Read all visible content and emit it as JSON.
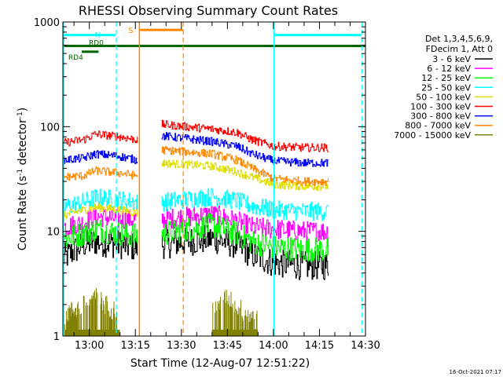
{
  "chart_data": {
    "type": "line",
    "title": "RHESSI Observing Summary Count Rates",
    "xlabel": "Start Time (12-Aug-07 12:51:22)",
    "ylabel": "Count Rate (s⁻¹ detector⁻¹)",
    "ylabel_parts": {
      "base": "Count Rate (s",
      "exp1": "-1",
      "mid": " detector",
      "exp2": "-1",
      "end": ")"
    },
    "yscale": "log",
    "ylim": [
      1,
      1000
    ],
    "yticks": [
      1,
      10,
      100,
      1000
    ],
    "ytick_labels": [
      "1",
      "10",
      "100",
      "1000"
    ],
    "xlim_minutes": [
      51.37,
      150.0
    ],
    "xticks_minutes": [
      60,
      75,
      90,
      105,
      120,
      135,
      150
    ],
    "xtick_labels": [
      "13:00",
      "13:15",
      "13:30",
      "13:45",
      "14:00",
      "14:15",
      "14:30"
    ],
    "legend_header": [
      "Det 1,3,4,5,6,9,",
      "FDecim 1, Att 0"
    ],
    "legend_position": "right",
    "timestamp": "16-Oct-2021 07:17",
    "data_gaps_minutes": [
      [
        75.6,
        83.5
      ]
    ],
    "series": [
      {
        "name": "3 - 6 keV",
        "color": "#000000",
        "points": [
          [
            51.4,
            5.5
          ],
          [
            58,
            7.5
          ],
          [
            62,
            8
          ],
          [
            70,
            7.5
          ],
          [
            75.5,
            7
          ],
          [
            83.5,
            7.5
          ],
          [
            100,
            8.5
          ],
          [
            108,
            7.5
          ],
          [
            113,
            6
          ],
          [
            120,
            5
          ],
          [
            130,
            4.7
          ],
          [
            138,
            4.7
          ]
        ]
      },
      {
        "name": "6 - 12 keV",
        "color": "#ff00ff",
        "points": [
          [
            51.4,
            11
          ],
          [
            58,
            12
          ],
          [
            62,
            14
          ],
          [
            70,
            13
          ],
          [
            75.5,
            13
          ],
          [
            83.5,
            13
          ],
          [
            100,
            14.5
          ],
          [
            108,
            12.5
          ],
          [
            113,
            11
          ],
          [
            120,
            10.5
          ],
          [
            130,
            10
          ],
          [
            138,
            10
          ]
        ]
      },
      {
        "name": "12 - 25 keV",
        "color": "#00ff00",
        "points": [
          [
            51.4,
            8.5
          ],
          [
            58,
            9.5
          ],
          [
            62,
            10.5
          ],
          [
            70,
            9.5
          ],
          [
            75.5,
            9
          ],
          [
            83.5,
            9.5
          ],
          [
            100,
            11.5
          ],
          [
            108,
            9.5
          ],
          [
            113,
            8
          ],
          [
            120,
            7
          ],
          [
            130,
            6.7
          ],
          [
            138,
            6.7
          ]
        ]
      },
      {
        "name": "25 - 50 keV",
        "color": "#00ffff",
        "points": [
          [
            51.4,
            17
          ],
          [
            58,
            19
          ],
          [
            62,
            21
          ],
          [
            70,
            20
          ],
          [
            75.5,
            19
          ],
          [
            83.5,
            19
          ],
          [
            100,
            21.5
          ],
          [
            108,
            19.5
          ],
          [
            113,
            17.5
          ],
          [
            120,
            16
          ],
          [
            130,
            15.5
          ],
          [
            138,
            15.5
          ]
        ]
      },
      {
        "name": "50 - 100 keV",
        "color": "#dddd00",
        "points": [
          [
            51.4,
            14
          ],
          [
            56,
            15.5
          ],
          [
            62,
            17
          ],
          [
            70,
            16
          ],
          [
            75.5,
            15
          ],
          [
            83.5,
            45
          ],
          [
            100,
            42
          ],
          [
            108,
            37
          ],
          [
            113,
            33
          ],
          [
            120,
            28
          ],
          [
            130,
            27
          ],
          [
            138,
            27
          ]
        ]
      },
      {
        "name": "100 - 300 keV",
        "color": "#ff0000",
        "points": [
          [
            51.4,
            70
          ],
          [
            58,
            75
          ],
          [
            62,
            85
          ],
          [
            70,
            80
          ],
          [
            75.5,
            75
          ],
          [
            83.5,
            105
          ],
          [
            100,
            95
          ],
          [
            108,
            88
          ],
          [
            113,
            75
          ],
          [
            120,
            65
          ],
          [
            130,
            63
          ],
          [
            138,
            63
          ]
        ]
      },
      {
        "name": "300 - 800 keV",
        "color": "#0000ff",
        "points": [
          [
            51.4,
            48
          ],
          [
            58,
            50
          ],
          [
            62,
            55
          ],
          [
            70,
            52
          ],
          [
            75.5,
            48
          ],
          [
            83.5,
            82
          ],
          [
            100,
            72
          ],
          [
            108,
            65
          ],
          [
            113,
            55
          ],
          [
            120,
            47
          ],
          [
            130,
            45
          ],
          [
            138,
            45
          ]
        ]
      },
      {
        "name": "800 - 7000 keV",
        "color": "#ff8800",
        "points": [
          [
            51.4,
            33
          ],
          [
            58,
            34
          ],
          [
            62,
            38
          ],
          [
            70,
            36
          ],
          [
            75.5,
            34
          ],
          [
            83.5,
            60
          ],
          [
            100,
            55
          ],
          [
            108,
            48
          ],
          [
            113,
            40
          ],
          [
            120,
            32
          ],
          [
            130,
            30
          ],
          [
            138,
            30
          ]
        ]
      },
      {
        "name": "7000 - 15000 keV",
        "color": "#808000",
        "points": [
          [
            52,
            1.5
          ],
          [
            58,
            1.8
          ],
          [
            62,
            2.2
          ],
          [
            66,
            1.8
          ],
          [
            70,
            1.5
          ],
          [
            100,
            1.6
          ],
          [
            105,
            2.2
          ],
          [
            110,
            1.6
          ],
          [
            115,
            1.3
          ]
        ]
      }
    ],
    "annotations": {
      "saa_lines": [
        {
          "label": "N",
          "color": "#00ffff",
          "start_minutes": 51.37,
          "end_minutes": 68.5,
          "level": 750
        },
        {
          "label": "",
          "color": "#00ffff",
          "start_minutes": 120.5,
          "end_minutes": 148.5,
          "level": 750
        }
      ],
      "s_flag": {
        "label": "S",
        "color": "#ff8800",
        "start_minutes": 76.5,
        "end_minutes": 90.5,
        "level": 840
      },
      "rd_lines": [
        {
          "label": "RD0",
          "color": "#006600",
          "start_minutes": 51.37,
          "end_minutes": 150.0,
          "level": 590
        },
        {
          "label": "RD4",
          "color": "#006600",
          "start_minutes": 57.5,
          "end_minutes": 63.0,
          "level": 520
        }
      ],
      "vertical_solid": [
        {
          "x_minutes": 76.3,
          "color": "#ff8800"
        },
        {
          "x_minutes": 120.2,
          "color": "#00ffff"
        }
      ],
      "vertical_dashed": [
        {
          "x_minutes": 68.8,
          "color": "#00ffff"
        },
        {
          "x_minutes": 90.6,
          "color": "#ff8800"
        },
        {
          "x_minutes": 148.9,
          "color": "#00ffff"
        }
      ]
    }
  }
}
